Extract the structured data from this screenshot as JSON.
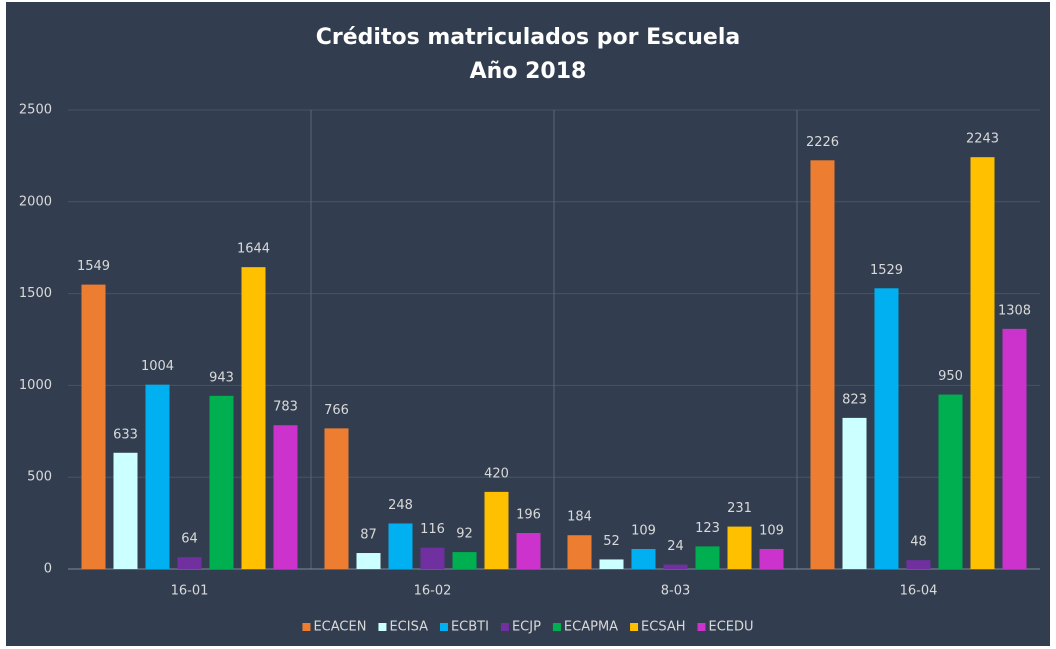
{
  "chart_data": {
    "type": "bar",
    "title": "Créditos matriculados por Escuela",
    "subtitle": "Año 2018",
    "categories": [
      "16-01",
      "16-02",
      "8-03",
      "16-04"
    ],
    "series": [
      {
        "name": "ECACEN",
        "color": "#ed7d31",
        "values": [
          1549,
          766,
          184,
          2226
        ]
      },
      {
        "name": "ECISA",
        "color": "#ccffff",
        "values": [
          633,
          87,
          52,
          823
        ]
      },
      {
        "name": "ECBTI",
        "color": "#00b0f0",
        "values": [
          1004,
          248,
          109,
          1529
        ]
      },
      {
        "name": "ECJP",
        "color": "#7030a0",
        "values": [
          64,
          116,
          24,
          48
        ]
      },
      {
        "name": "ECAPMA",
        "color": "#00b050",
        "values": [
          943,
          92,
          123,
          950
        ]
      },
      {
        "name": "ECSAH",
        "color": "#ffc000",
        "values": [
          1644,
          420,
          231,
          2243
        ]
      },
      {
        "name": "ECEDU",
        "color": "#cc33cc",
        "values": [
          783,
          196,
          109,
          1308
        ]
      }
    ],
    "ylim": [
      0,
      2500
    ],
    "yticks": [
      0,
      500,
      1000,
      1500,
      2000,
      2500
    ],
    "grid": true,
    "legend": "bottom"
  }
}
